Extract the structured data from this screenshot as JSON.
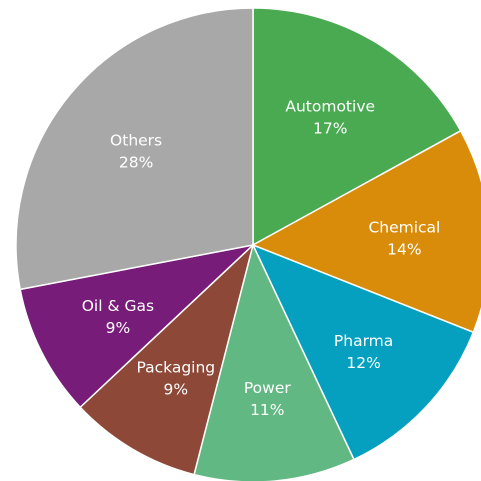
{
  "chart_data": {
    "type": "pie",
    "title": "",
    "slices": [
      {
        "label": "Automotive",
        "value": 17,
        "value_label": "17%",
        "color": "#4aaa52"
      },
      {
        "label": "Chemical",
        "value": 14,
        "value_label": "14%",
        "color": "#d98c0a"
      },
      {
        "label": "Pharma",
        "value": 12,
        "value_label": "12%",
        "color": "#05a0bf"
      },
      {
        "label": "Power",
        "value": 11,
        "value_label": "11%",
        "color": "#62b882"
      },
      {
        "label": "Packaging",
        "value": 9,
        "value_label": "9%",
        "color": "#8d4838"
      },
      {
        "label": "Oil & Gas",
        "value": 9,
        "value_label": "9%",
        "color": "#771d79"
      },
      {
        "label": "Others",
        "value": 28,
        "value_label": "28%",
        "color": "#a8a8a8"
      }
    ],
    "start_angle": "12 o'clock",
    "direction": "clockwise",
    "legend": "none",
    "label_color": "#ffffff",
    "background": "#ffffff"
  }
}
